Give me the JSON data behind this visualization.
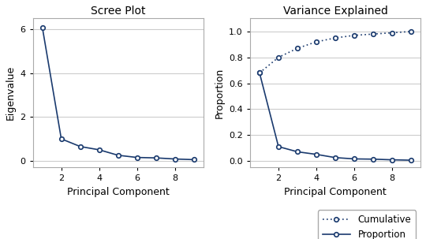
{
  "scree_title": "Scree Plot",
  "variance_title": "Variance Explained",
  "xlabel": "Principal Component",
  "scree_ylabel": "Eigenvalue",
  "variance_ylabel": "Proportion",
  "components": [
    1,
    2,
    3,
    4,
    5,
    6,
    7,
    8,
    9
  ],
  "eigenvalues": [
    6.1,
    1.0,
    0.65,
    0.5,
    0.25,
    0.15,
    0.13,
    0.08,
    0.05
  ],
  "proportion": [
    0.68,
    0.11,
    0.07,
    0.05,
    0.025,
    0.015,
    0.013,
    0.008,
    0.005
  ],
  "cumulative": [
    0.68,
    0.8,
    0.87,
    0.92,
    0.95,
    0.97,
    0.98,
    0.99,
    1.0
  ],
  "line_color": "#1a3a6e",
  "bg_color": "#ffffff",
  "plot_bg": "#ffffff",
  "scree_ylim": [
    -0.3,
    6.5
  ],
  "scree_yticks": [
    0,
    2,
    4,
    6
  ],
  "variance_ylim": [
    -0.05,
    1.1
  ],
  "variance_yticks": [
    0.0,
    0.2,
    0.4,
    0.6,
    0.8,
    1.0
  ],
  "xticks": [
    2,
    4,
    6,
    8
  ],
  "legend_labels": [
    "Cumulative",
    "Proportion"
  ]
}
